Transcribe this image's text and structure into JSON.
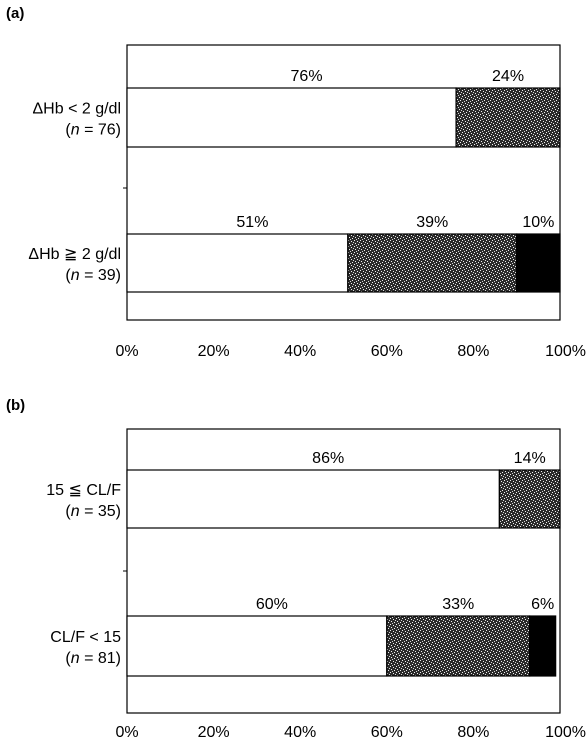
{
  "chart_data": [
    {
      "type": "bar",
      "stacked": true,
      "orientation": "horizontal",
      "panel_label": "(a)",
      "categories": [
        {
          "label": "ΔHb < 2 g/dl",
          "n_text": "= 76"
        },
        {
          "label": "ΔHb ≧ 2 g/dl",
          "n_text": "= 39"
        }
      ],
      "series": [
        {
          "values": [
            76,
            51
          ],
          "fill": "white"
        },
        {
          "values": [
            24,
            39
          ],
          "fill": "stipple"
        },
        {
          "values": [
            0,
            10
          ],
          "fill": "black"
        }
      ],
      "data_labels": [
        [
          "76%",
          "24%",
          ""
        ],
        [
          "51%",
          "39%",
          "10%"
        ]
      ],
      "x_ticks": [
        "0%",
        "20%",
        "40%",
        "60%",
        "80%",
        "100%"
      ],
      "xlim": [
        0,
        100
      ],
      "grid": false,
      "legend": "none"
    },
    {
      "type": "bar",
      "stacked": true,
      "orientation": "horizontal",
      "panel_label": "(b)",
      "categories": [
        {
          "label": "15 ≦ CL/F",
          "n_text": "= 35"
        },
        {
          "label": "CL/F < 15",
          "n_text": "= 81"
        }
      ],
      "series": [
        {
          "values": [
            86,
            60
          ],
          "fill": "white"
        },
        {
          "values": [
            14,
            33
          ],
          "fill": "stipple"
        },
        {
          "values": [
            0,
            6
          ],
          "fill": "black"
        }
      ],
      "data_labels": [
        [
          "86%",
          "14%",
          ""
        ],
        [
          "60%",
          "33%",
          "6%"
        ]
      ],
      "x_ticks": [
        "0%",
        "20%",
        "40%",
        "60%",
        "80%",
        "100%"
      ],
      "xlim": [
        0,
        100
      ],
      "grid": false,
      "legend": "none"
    }
  ],
  "colors": {
    "stipple_dark": "#2b2b2b",
    "stipple_light": "#f0f0f0",
    "solid": "#000000",
    "frame": "#000000"
  }
}
